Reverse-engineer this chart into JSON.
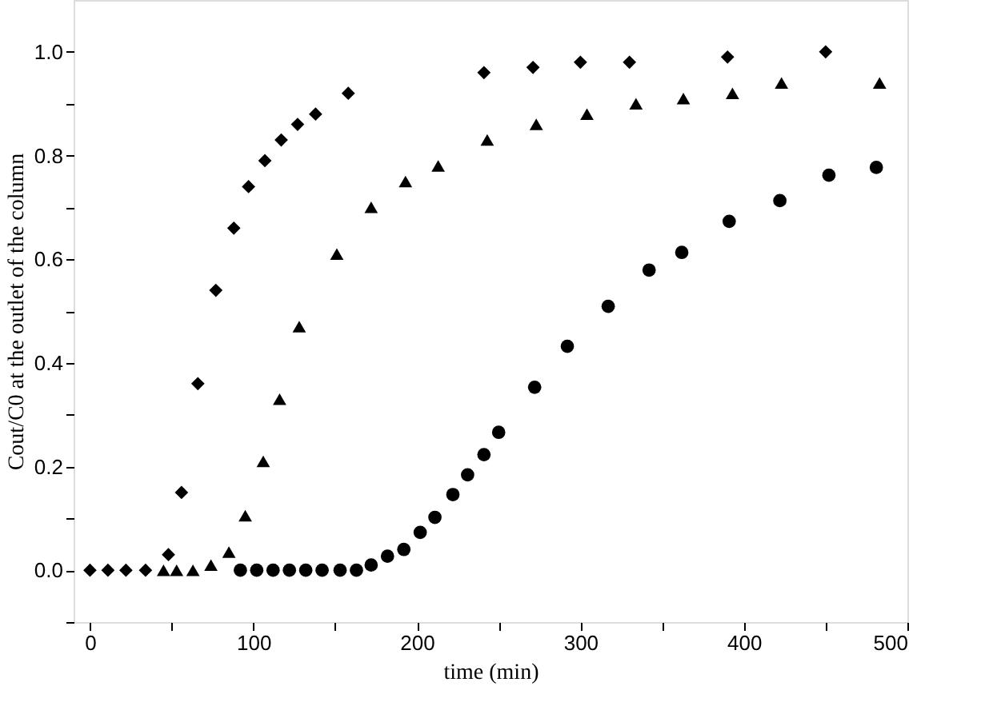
{
  "chart_data": {
    "type": "scatter",
    "xlabel": "time (min)",
    "ylabel": "Cout/C0 at the outlet of the column",
    "xlim": [
      -10,
      500
    ],
    "ylim": [
      -0.1,
      1.1
    ],
    "xticks": [
      0,
      {
        "value": 50,
        "label": null
      },
      100,
      {
        "value": 150,
        "label": null
      },
      200,
      {
        "value": 250,
        "label": null
      },
      300,
      {
        "value": 350,
        "label": null
      },
      400,
      {
        "value": 450,
        "label": null
      },
      500
    ],
    "yticks": [
      {
        "value": -0.1,
        "label": null
      },
      "0.0",
      {
        "value": 0.1,
        "label": null
      },
      0.2,
      {
        "value": 0.3,
        "label": null
      },
      0.4,
      {
        "value": 0.5,
        "label": null
      },
      0.6,
      {
        "value": 0.7,
        "label": null
      },
      0.8,
      {
        "value": 0.9,
        "label": null
      },
      "1.0"
    ],
    "grid": false,
    "series": [
      {
        "color": "#000000",
        "marker": "diamond",
        "x": [
          0,
          11,
          22,
          34,
          48,
          56,
          66,
          77,
          88,
          97,
          107,
          117,
          127,
          138,
          158,
          241,
          271,
          300,
          330,
          390,
          450
        ],
        "values": [
          0,
          0,
          0,
          0,
          0.03,
          0.15,
          0.36,
          0.54,
          0.66,
          0.74,
          0.79,
          0.83,
          0.86,
          0.88,
          0.92,
          0.96,
          0.97,
          0.98,
          0.98,
          0.99,
          1.0
        ]
      },
      {
        "color": "#000000",
        "marker": "triangle",
        "x": [
          45,
          53,
          63,
          74,
          85,
          95,
          106,
          116,
          128,
          151,
          172,
          193,
          213,
          243,
          273,
          304,
          334,
          363,
          393,
          423,
          483
        ],
        "values": [
          0,
          0,
          0,
          0.01,
          0.035,
          0.105,
          0.21,
          0.33,
          0.47,
          0.61,
          0.7,
          0.75,
          0.78,
          0.83,
          0.86,
          0.88,
          0.9,
          0.91,
          0.92,
          0.94,
          0.94
        ]
      },
      {
        "color": "#000000",
        "marker": "circle",
        "x": [
          92,
          102,
          112,
          122,
          132,
          142,
          153,
          163,
          172,
          182,
          192,
          202,
          211,
          222,
          231,
          241,
          250,
          272,
          292,
          317,
          342,
          362,
          391,
          422,
          452,
          481
        ],
        "values": [
          0,
          0,
          0,
          0,
          0,
          0,
          0,
          0,
          0.01,
          0.027,
          0.04,
          0.073,
          0.102,
          0.146,
          0.184,
          0.223,
          0.266,
          0.353,
          0.432,
          0.509,
          0.579,
          0.613,
          0.673,
          0.713,
          0.762,
          0.777
        ]
      }
    ]
  }
}
